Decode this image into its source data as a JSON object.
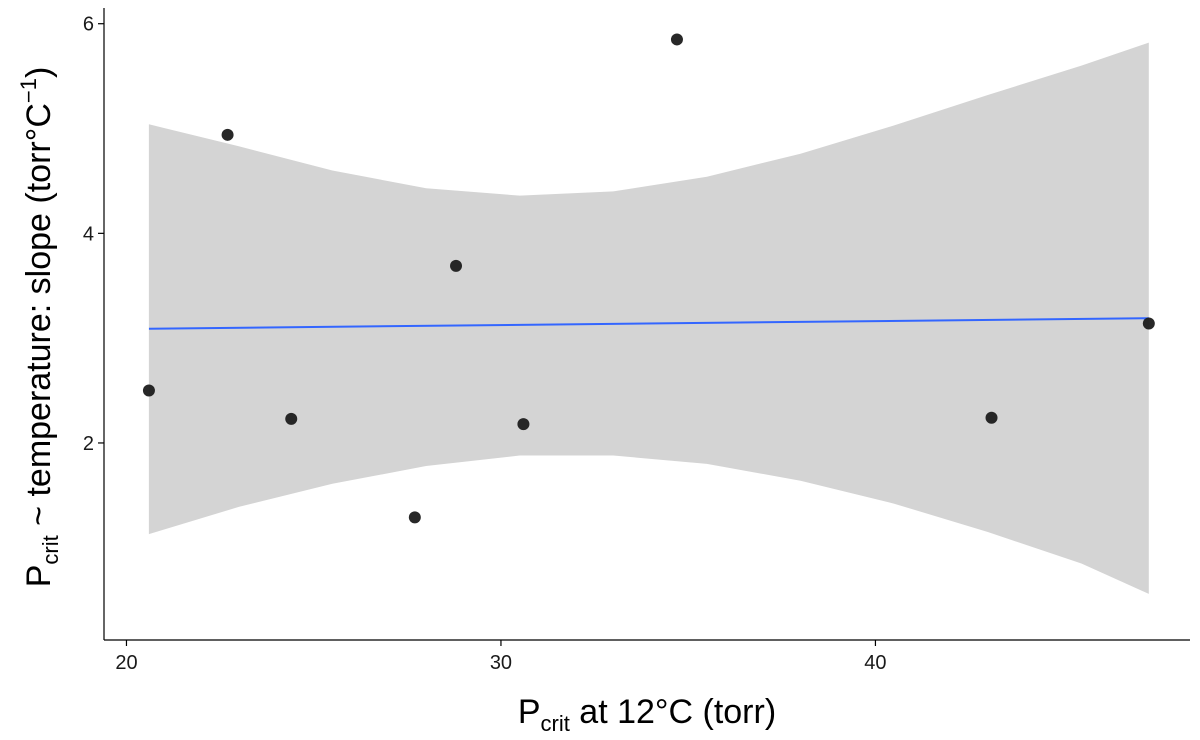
{
  "chart_data": {
    "type": "scatter",
    "xlabel": {
      "main": "P",
      "sub": "crit",
      "rest": " at 12°C (torr)"
    },
    "ylabel": {
      "main": "P",
      "sub": "crit",
      "rest": " ~ temperature: slope (torr°C",
      "sup": "−1",
      "end": ")"
    },
    "xlim": [
      19.4,
      48.4
    ],
    "ylim": [
      0.12,
      6.15
    ],
    "x_ticks": [
      20,
      30,
      40
    ],
    "x_tick_labels": [
      "20",
      "30",
      "40"
    ],
    "y_ticks": [
      2,
      4,
      6
    ],
    "y_tick_labels": [
      "2",
      "4",
      "6"
    ],
    "grid": false,
    "points": [
      {
        "x": 20.6,
        "y": 2.5
      },
      {
        "x": 22.7,
        "y": 4.94
      },
      {
        "x": 24.4,
        "y": 2.23
      },
      {
        "x": 27.7,
        "y": 1.29
      },
      {
        "x": 28.8,
        "y": 3.69
      },
      {
        "x": 30.6,
        "y": 2.18
      },
      {
        "x": 34.7,
        "y": 5.85
      },
      {
        "x": 43.1,
        "y": 2.24
      },
      {
        "x": 47.3,
        "y": 3.14
      }
    ],
    "fit_line": {
      "x": [
        20.6,
        47.3
      ],
      "y": [
        3.09,
        3.19
      ]
    },
    "confidence_band": {
      "x": [
        20.6,
        23.0,
        25.5,
        28.0,
        30.5,
        33.0,
        35.5,
        38.0,
        40.5,
        43.0,
        45.5,
        47.3
      ],
      "upper": [
        5.04,
        4.83,
        4.6,
        4.43,
        4.36,
        4.4,
        4.54,
        4.76,
        5.03,
        5.32,
        5.6,
        5.82
      ],
      "lower": [
        1.13,
        1.39,
        1.61,
        1.78,
        1.88,
        1.88,
        1.8,
        1.64,
        1.42,
        1.15,
        0.85,
        0.56
      ]
    },
    "colors": {
      "point": "#1c1c1c",
      "line": "#3366ff",
      "band": "#d4d4d4",
      "axis": "#000000"
    }
  }
}
